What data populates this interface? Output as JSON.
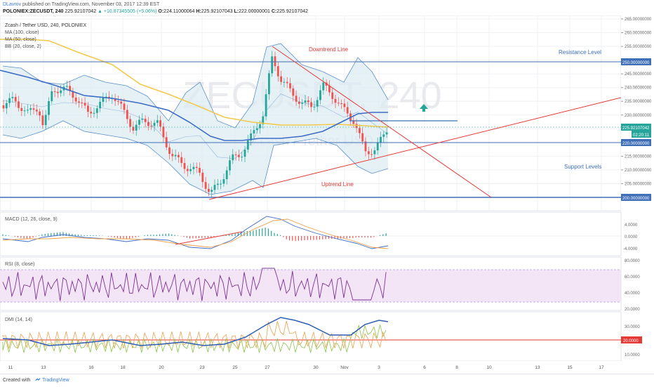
{
  "header": {
    "author": "DLavrov",
    "published_text": "published on TradingView.com, November 03, 2017 12:39 EST",
    "symbol": "POLONIEX:ZECUSDT, 240",
    "last": "225.92107042",
    "change": "▲ +10.87345505 (+5.06%)",
    "o_label": "O:",
    "o_value": "224.11000064",
    "h_label": "H:",
    "h_value": "225.92107043",
    "l_label": "L:",
    "l_value": "222.00000001",
    "c_label": "C:",
    "c_value": "225.92107042"
  },
  "legend": {
    "title": "Zcash / Tether USD, 240, POLONIEX",
    "ma100": "MA (100, close)",
    "ma50": "MA (50, close)",
    "bb": "BB (20, close, 2)"
  },
  "watermark": {
    "symbol": "ZECUSDT, 240",
    "name": "Zcash / Tether USD"
  },
  "annotations": {
    "downtrend": "Downtrend Line",
    "uptrend": "Uptrend Line",
    "resistance": "Resistance Level",
    "support": "Support Levels"
  },
  "price_axis": {
    "ticks": [
      "265.00000000",
      "260.00000000",
      "255.00000000",
      "250.00000000",
      "245.00000000",
      "240.00000000",
      "235.00000000",
      "230.00000000",
      "225.00000000",
      "220.00000000",
      "215.00000000",
      "210.00000000",
      "205.00000000",
      "200.00000000"
    ],
    "tag_250": "250.00000000",
    "tag_220": "220.00000000",
    "tag_200": "200.00000000",
    "tag_last": "225.92107042",
    "tag_timer": "02:20:11"
  },
  "macd": {
    "label": "MACD (12, 26, close, 9)",
    "ticks": [
      "4.0000",
      "0.0000",
      "-4.0000"
    ]
  },
  "rsi": {
    "label": "RSI (8, close)",
    "ticks": [
      "80.0000",
      "60.0000",
      "40.0000",
      "20.0000"
    ]
  },
  "dmi": {
    "label": "DMI (14, 14)",
    "ticks": [
      "30.0000",
      "20.0000",
      "10.0000"
    ],
    "tag": "20.0000"
  },
  "time_axis": {
    "labels": [
      "11",
      "13",
      "16",
      "18",
      "20",
      "23",
      "25",
      "27",
      "30",
      "Nov",
      "3",
      "6",
      "8",
      "10",
      "13",
      "15",
      "17"
    ]
  },
  "footer": {
    "created": "Created with",
    "brand": "TradingView"
  },
  "colors": {
    "up": "#26a69a",
    "down": "#ef5350",
    "ma100": "#f2c94c",
    "ma50": "#3d6cc6",
    "bb": "#5b8fc9",
    "bb_fill": "#dcebf2",
    "trend": "#e53935",
    "level": "#3f6fb7",
    "rsi_band": "#f3e5f5",
    "rsi_line": "#7b3294"
  }
}
